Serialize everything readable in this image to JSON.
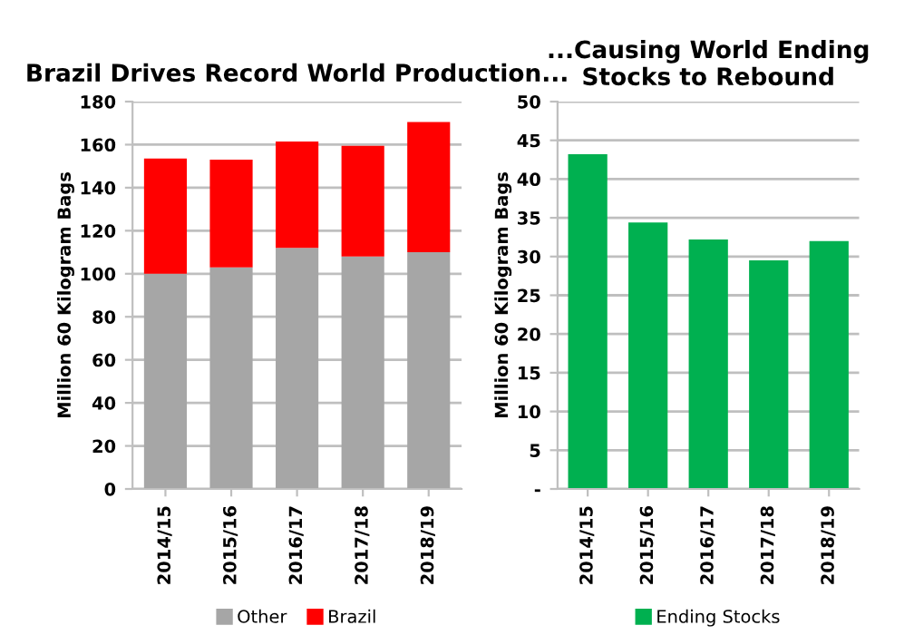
{
  "chart_data": [
    {
      "type": "bar",
      "title": "Brazil Drives Record World Production...",
      "ylabel": "Million 60 Kilogram Bags",
      "stacked": true,
      "categories": [
        "2014/15",
        "2015/16",
        "2016/17",
        "2017/18",
        "2018/19"
      ],
      "series": [
        {
          "name": "Other",
          "color": "#a6a6a6",
          "values": [
            100,
            103,
            112,
            108,
            110
          ]
        },
        {
          "name": "Brazil",
          "color": "#ff0000",
          "values": [
            53.5,
            50,
            49.5,
            51.5,
            60.5
          ]
        }
      ],
      "ylim": [
        0,
        180
      ],
      "yticks": [
        0,
        20,
        40,
        60,
        80,
        100,
        120,
        140,
        160,
        180
      ],
      "grid": "y",
      "legend": "bottom"
    },
    {
      "type": "bar",
      "title": "...Causing World Ending Stocks to Rebound",
      "ylabel": "Million 60 Kilogram Bags",
      "categories": [
        "2014/15",
        "2015/16",
        "2016/17",
        "2017/18",
        "2018/19"
      ],
      "series": [
        {
          "name": "Ending Stocks",
          "color": "#00b050",
          "values": [
            43.2,
            34.4,
            32.2,
            29.5,
            32
          ]
        }
      ],
      "ylim": [
        0,
        50
      ],
      "yticks": [
        {
          "value": 0,
          "label": "-"
        },
        5,
        10,
        15,
        20,
        25,
        30,
        35,
        40,
        45,
        50
      ],
      "grid": "y",
      "legend": "bottom"
    }
  ]
}
